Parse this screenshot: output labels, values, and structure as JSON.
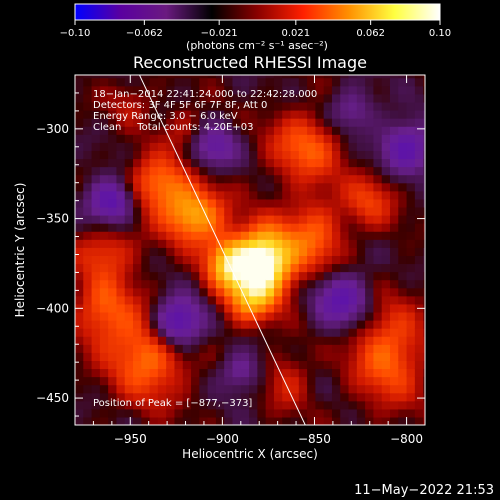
{
  "chart_data": {
    "type": "heatmap",
    "title": "Reconstructed RHESSI Image",
    "xlabel": "Heliocentric X (arcsec)",
    "ylabel": "Heliocentric Y (arcsec)",
    "xlim": [
      -980,
      -790
    ],
    "ylim": [
      -465,
      -270
    ],
    "xticks": [
      -950,
      -900,
      -850,
      -800
    ],
    "xtick_labels": [
      "−950",
      "−900",
      "−850",
      "−800"
    ],
    "yticks": [
      -300,
      -350,
      -400,
      -450
    ],
    "ytick_labels": [
      "−300",
      "−350",
      "−400",
      "−450"
    ],
    "colorbar": {
      "range": [
        -0.1,
        0.1
      ],
      "ticks": [
        -0.1,
        -0.062,
        -0.021,
        0.021,
        0.062,
        0.1
      ],
      "tick_labels": [
        "−0.10",
        "−0.062",
        "−0.021",
        "0.021",
        "0.062",
        "0.10"
      ],
      "unit_label": "(photons cm⁻² s⁻¹ asec⁻²)",
      "colors": [
        "#0000ff",
        "#5a00a0",
        "#6a1a80",
        "#000000",
        "#8a0000",
        "#ff2000",
        "#ff9000",
        "#ffff40",
        "#ffffff"
      ]
    },
    "blobs": [
      {
        "x": -877,
        "y": -373,
        "amp": 1.0,
        "sx": 11,
        "sy": 13
      },
      {
        "x": -897,
        "y": -375,
        "amp": 0.62,
        "sx": 9,
        "sy": 10
      },
      {
        "x": -915,
        "y": -348,
        "amp": 0.62,
        "sx": 12,
        "sy": 11
      },
      {
        "x": -935,
        "y": -330,
        "amp": 0.48,
        "sx": 12,
        "sy": 11
      },
      {
        "x": -885,
        "y": -395,
        "amp": 0.5,
        "sx": 10,
        "sy": 10
      },
      {
        "x": -855,
        "y": -310,
        "amp": 0.4,
        "sx": 14,
        "sy": 14
      },
      {
        "x": -850,
        "y": -360,
        "amp": 0.38,
        "sx": 11,
        "sy": 16
      },
      {
        "x": -940,
        "y": -425,
        "amp": 0.5,
        "sx": 15,
        "sy": 18
      },
      {
        "x": -965,
        "y": -400,
        "amp": 0.38,
        "sx": 11,
        "sy": 14
      },
      {
        "x": -963,
        "y": -368,
        "amp": 0.3,
        "sx": 12,
        "sy": 10
      },
      {
        "x": -820,
        "y": -340,
        "amp": 0.3,
        "sx": 10,
        "sy": 11
      },
      {
        "x": -810,
        "y": -425,
        "amp": 0.44,
        "sx": 14,
        "sy": 20
      },
      {
        "x": -865,
        "y": -440,
        "amp": 0.22,
        "sx": 9,
        "sy": 12
      },
      {
        "x": -920,
        "y": -300,
        "amp": 0.18,
        "sx": 9,
        "sy": 9
      },
      {
        "x": -950,
        "y": -285,
        "amp": 0.16,
        "sx": 9,
        "sy": 9
      },
      {
        "x": -960,
        "y": -340,
        "amp": -0.55,
        "sx": 9,
        "sy": 9
      },
      {
        "x": -925,
        "y": -408,
        "amp": -0.7,
        "sx": 10,
        "sy": 10
      },
      {
        "x": -835,
        "y": -395,
        "amp": -0.48,
        "sx": 11,
        "sy": 11
      },
      {
        "x": -905,
        "y": -310,
        "amp": -0.38,
        "sx": 9,
        "sy": 9
      },
      {
        "x": -800,
        "y": -310,
        "amp": -0.48,
        "sx": 10,
        "sy": 10
      },
      {
        "x": -890,
        "y": -435,
        "amp": -0.3,
        "sx": 8,
        "sy": 8
      },
      {
        "x": -830,
        "y": -290,
        "amp": -0.3,
        "sx": 9,
        "sy": 9
      }
    ],
    "limb_line": {
      "x1": -945,
      "y1": -270,
      "x2": -855,
      "y2": -465
    },
    "peak_label": "Position of Peak = [−877,−373]",
    "annotations": [
      "18−Jan−2014 22:41:24.000 to 22:42:28.000",
      "Detectors: 3F 4F 5F 6F 7F 8F, Att 0",
      "Energy Range: 3.0 − 6.0 keV",
      "Clean     Total counts: 4.20E+03"
    ]
  },
  "footer_timestamp": "11−May−2022 21:53"
}
